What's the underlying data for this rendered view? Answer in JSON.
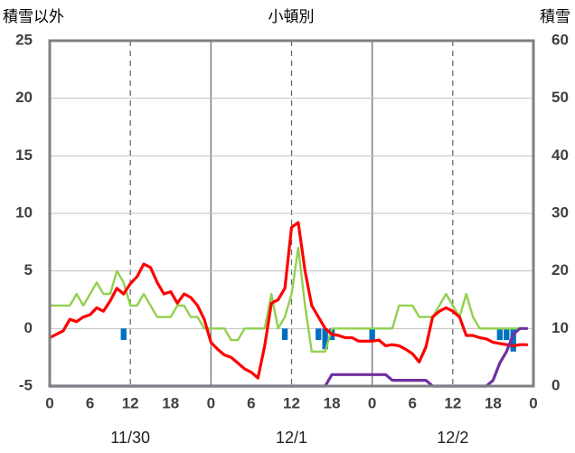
{
  "chart_data": {
    "type": "line",
    "title": "小頓別",
    "left_axis_label": "積雪以外",
    "right_axis_label": "積雪",
    "left_ylim": [
      -5,
      25
    ],
    "right_ylim": [
      0,
      60
    ],
    "left_ticks": [
      "25",
      "20",
      "15",
      "10",
      "5",
      "0",
      "-5"
    ],
    "right_ticks": [
      "60",
      "50",
      "40",
      "30",
      "20",
      "10",
      "0"
    ],
    "x_range": [
      0,
      72
    ],
    "x_tick_labels": [
      "0",
      "6",
      "12",
      "18",
      "0",
      "6",
      "12",
      "18",
      "0",
      "6",
      "12",
      "18",
      "0"
    ],
    "date_labels": [
      {
        "label": "11/30",
        "hour": 12
      },
      {
        "label": "12/1",
        "hour": 36
      },
      {
        "label": "12/2",
        "hour": 60
      }
    ],
    "grid": {
      "solid_hours": [
        24,
        48
      ],
      "dashed_hours": [
        12,
        36,
        60
      ]
    },
    "colors": {
      "temperature": "#ff0000",
      "wind": "#92d050",
      "snow_depth": "#7030a0",
      "precip": "#0070c0",
      "axis": "#808080"
    },
    "series": [
      {
        "key": "temperature",
        "axis": "left",
        "values": [
          -0.8,
          -0.5,
          -0.2,
          0.8,
          0.6,
          1.0,
          1.2,
          1.8,
          1.5,
          2.4,
          3.5,
          3.0,
          3.9,
          4.5,
          5.6,
          5.3,
          4.0,
          3.0,
          3.2,
          2.2,
          3.0,
          2.7,
          2.0,
          0.8,
          -1.2,
          -1.8,
          -2.3,
          -2.5,
          -3.0,
          -3.5,
          -3.8,
          -4.3,
          -1.5,
          2.2,
          2.5,
          3.5,
          8.8,
          9.2,
          5.0,
          2.0,
          1.0,
          0.0,
          -0.5,
          -0.6,
          -0.8,
          -0.8,
          -1.1,
          -1.1,
          -1.1,
          -1.0,
          -1.5,
          -1.4,
          -1.5,
          -1.8,
          -2.2,
          -2.9,
          -1.6,
          1.0,
          1.5,
          1.8,
          1.5,
          1.0,
          -0.6,
          -0.6,
          -0.8,
          -0.9,
          -1.2,
          -1.3,
          -1.4,
          -1.5,
          -1.4,
          -1.4
        ]
      },
      {
        "key": "wind",
        "axis": "left",
        "values": [
          2,
          2,
          2,
          2,
          3,
          2,
          3,
          4,
          3,
          3,
          5,
          4,
          2,
          2,
          3,
          2,
          1,
          1,
          1,
          2,
          2,
          1,
          1,
          0,
          0,
          0,
          0,
          -1,
          -1,
          0,
          0,
          0,
          0,
          3,
          0,
          1,
          3,
          7,
          2,
          -2,
          -2,
          -2,
          0,
          0,
          0,
          0,
          0,
          0,
          0,
          0,
          0,
          0,
          2,
          2,
          2,
          1,
          1,
          1,
          2,
          3,
          2,
          1,
          3,
          1,
          0,
          0,
          0,
          0,
          0,
          0,
          0,
          0
        ]
      },
      {
        "key": "snow_depth",
        "axis": "right",
        "points": [
          [
            0,
            0
          ],
          [
            41,
            0
          ],
          [
            42,
            2
          ],
          [
            50,
            2
          ],
          [
            51,
            1
          ],
          [
            56,
            1
          ],
          [
            57,
            0
          ],
          [
            65,
            0
          ],
          [
            66,
            1
          ],
          [
            67,
            4
          ],
          [
            68,
            6
          ],
          [
            69,
            9
          ],
          [
            70,
            10
          ],
          [
            71,
            10
          ]
        ]
      }
    ],
    "precip_bars": [
      {
        "hour": 11,
        "value": -1.0
      },
      {
        "hour": 35,
        "value": -1.0
      },
      {
        "hour": 40,
        "value": -1.0
      },
      {
        "hour": 41,
        "value": -1.8
      },
      {
        "hour": 42,
        "value": -1.0
      },
      {
        "hour": 48,
        "value": -1.0
      },
      {
        "hour": 67,
        "value": -1.0
      },
      {
        "hour": 68,
        "value": -1.0
      },
      {
        "hour": 69,
        "value": -2.0
      }
    ]
  }
}
